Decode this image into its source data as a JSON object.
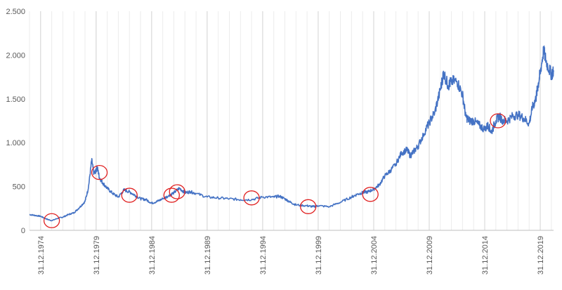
{
  "chart_data": {
    "type": "line",
    "title": "",
    "xlabel": "",
    "ylabel": "",
    "ylim": [
      0,
      2500
    ],
    "yticks": [
      0,
      500,
      1000,
      1500,
      2000,
      2500
    ],
    "ytick_labels": [
      "0",
      "500",
      "1.000",
      "1.500",
      "2.000",
      "2.500"
    ],
    "xlim": [
      1974.0,
      2021.2
    ],
    "xticks": [
      1975.0,
      1980.0,
      1985.0,
      1990.0,
      1995.0,
      2000.0,
      2005.0,
      2010.0,
      2015.0,
      2020.0
    ],
    "xtick_labels": [
      "31.12.1974",
      "31.12.1979",
      "31.12.1984",
      "31.12.1989",
      "31.12.1994",
      "31.12.1999",
      "31.12.2004",
      "31.12.2009",
      "31.12.2014",
      "31.12.2019"
    ],
    "grid": "vertical",
    "legend": "none",
    "line_color": "#4472c4",
    "marker_color": "#e02020",
    "series": [
      {
        "x": [
          1974.0,
          1974.5,
          1975.0,
          1975.5,
          1976.0,
          1976.6,
          1977.0,
          1977.5,
          1978.0,
          1978.5,
          1979.0,
          1979.3,
          1979.6,
          1979.8,
          1980.0,
          1980.1,
          1980.3,
          1980.6,
          1981.0,
          1981.5,
          1982.0,
          1982.5,
          1983.0,
          1983.5,
          1984.0,
          1984.5,
          1985.0,
          1985.5,
          1986.0,
          1986.5,
          1987.0,
          1987.5,
          1988.0,
          1988.5,
          1989.0,
          1990.0,
          1991.0,
          1992.0,
          1993.0,
          1994.0,
          1995.0,
          1996.0,
          1996.5,
          1997.0,
          1997.5,
          1998.0,
          1999.0,
          1999.5,
          2000.0,
          2001.0,
          2002.0,
          2003.0,
          2003.5,
          2004.0,
          2004.5,
          2005.0,
          2005.5,
          2006.0,
          2006.5,
          2007.0,
          2007.5,
          2008.0,
          2008.3,
          2008.6,
          2009.0,
          2009.5,
          2010.0,
          2010.5,
          2011.0,
          2011.3,
          2011.7,
          2012.0,
          2012.5,
          2013.0,
          2013.3,
          2013.6,
          2014.0,
          2014.5,
          2015.0,
          2015.3,
          2015.6,
          2016.0,
          2016.3,
          2016.6,
          2017.0,
          2017.5,
          2018.0,
          2018.5,
          2019.0,
          2019.3,
          2019.6,
          2019.8,
          2020.0,
          2020.3,
          2020.6,
          2021.0,
          2021.2
        ],
        "values": [
          180,
          170,
          160,
          130,
          110,
          140,
          150,
          180,
          200,
          260,
          330,
          480,
          800,
          650,
          680,
          720,
          600,
          540,
          480,
          420,
          380,
          460,
          440,
          400,
          360,
          350,
          310,
          330,
          360,
          390,
          430,
          480,
          430,
          440,
          420,
          380,
          370,
          360,
          350,
          350,
          380,
          380,
          390,
          360,
          320,
          290,
          280,
          270,
          280,
          270,
          320,
          380,
          410,
          430,
          440,
          470,
          520,
          620,
          680,
          760,
          880,
          920,
          850,
          900,
          960,
          1100,
          1230,
          1350,
          1600,
          1800,
          1650,
          1700,
          1700,
          1550,
          1300,
          1250,
          1250,
          1200,
          1150,
          1200,
          1120,
          1250,
          1300,
          1260,
          1250,
          1300,
          1320,
          1280,
          1220,
          1400,
          1500,
          1650,
          1800,
          2050,
          1900,
          1780,
          1810
        ]
      }
    ],
    "markers": [
      {
        "x": 1976.0,
        "y": 110
      },
      {
        "x": 1980.3,
        "y": 660
      },
      {
        "x": 1983.0,
        "y": 400
      },
      {
        "x": 1986.8,
        "y": 400
      },
      {
        "x": 1987.3,
        "y": 440
      },
      {
        "x": 1994.0,
        "y": 370
      },
      {
        "x": 1999.1,
        "y": 270
      },
      {
        "x": 2004.7,
        "y": 410
      },
      {
        "x": 2016.2,
        "y": 1250
      }
    ]
  }
}
